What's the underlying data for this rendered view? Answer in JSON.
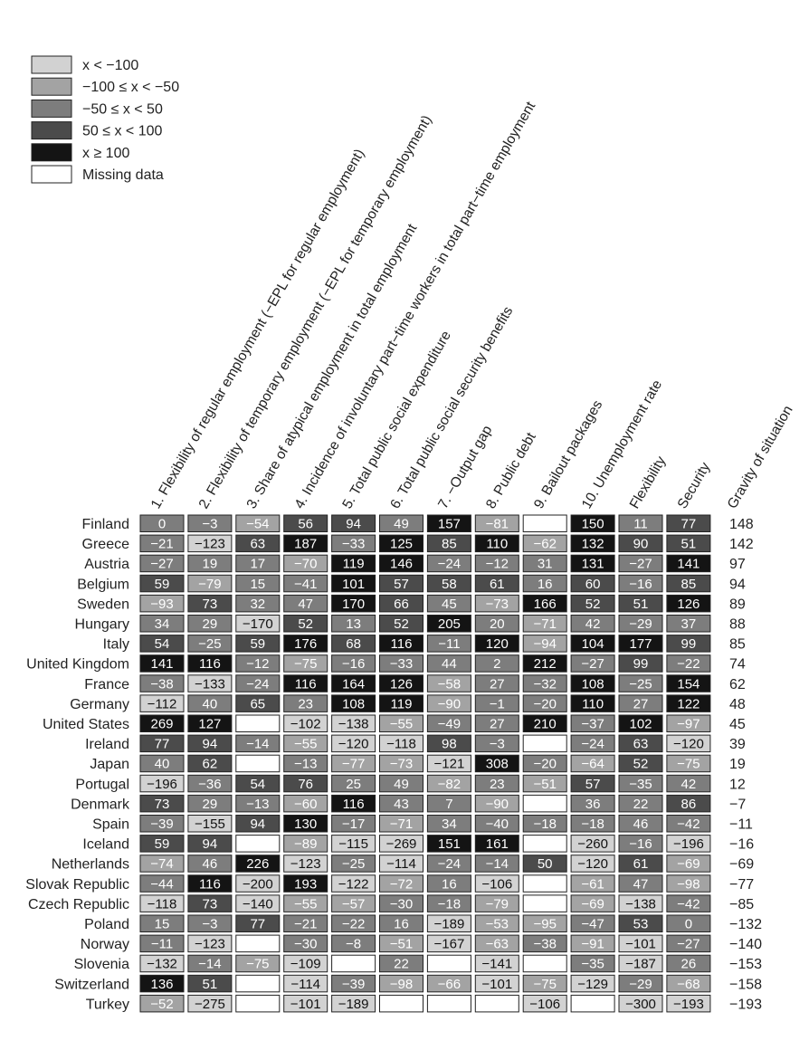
{
  "chart_data": {
    "type": "heatmap",
    "columns": [
      "1. Flexibility of regular employment (−EPL for regular employment)",
      "2. Flexibility of temporary employment (−EPL for temporary employment)",
      "3. Share of atypical employment in total employment",
      "4. Incidence of involuntary part−time workers in total part−time employment",
      "5. Total public social expenditure",
      "6. Total public social security benefits",
      "7. −Output gap",
      "8. Public debt",
      "9. Bailout packages",
      "10. Unemployment rate",
      "Flexibility",
      "Security"
    ],
    "extra_column": "Gravity of situation",
    "legend": [
      {
        "label": "x < −100",
        "color": "#d2d2d2"
      },
      {
        "label": "−100 ≤ x < −50",
        "color": "#a3a3a3"
      },
      {
        "label": "−50 ≤ x < 50",
        "color": "#7d7d7d"
      },
      {
        "label": "50 ≤ x < 100",
        "color": "#4b4b4b"
      },
      {
        "label": "x ≥ 100",
        "color": "#141414"
      },
      {
        "label": "Missing data",
        "color": "#ffffff"
      }
    ],
    "rows": [
      {
        "country": "Finland",
        "values": [
          0,
          -3,
          -54,
          56,
          94,
          49,
          157,
          -81,
          null,
          150,
          11,
          77
        ],
        "gravity": 148
      },
      {
        "country": "Greece",
        "values": [
          -21,
          -123,
          63,
          187,
          -33,
          125,
          85,
          110,
          -62,
          132,
          90,
          51
        ],
        "gravity": 142
      },
      {
        "country": "Austria",
        "values": [
          -27,
          19,
          17,
          -70,
          119,
          146,
          -24,
          -12,
          31,
          131,
          -27,
          141
        ],
        "gravity": 97
      },
      {
        "country": "Belgium",
        "values": [
          59,
          -79,
          15,
          -41,
          101,
          57,
          58,
          61,
          16,
          60,
          -16,
          85
        ],
        "gravity": 94
      },
      {
        "country": "Sweden",
        "values": [
          -93,
          73,
          32,
          47,
          170,
          66,
          45,
          -73,
          166,
          52,
          51,
          126
        ],
        "gravity": 89
      },
      {
        "country": "Hungary",
        "values": [
          34,
          29,
          -170,
          52,
          13,
          52,
          205,
          20,
          -71,
          42,
          -29,
          37
        ],
        "gravity": 88
      },
      {
        "country": "Italy",
        "values": [
          54,
          -25,
          59,
          176,
          68,
          116,
          -11,
          120,
          -94,
          104,
          177,
          99
        ],
        "gravity": 85
      },
      {
        "country": "United Kingdom",
        "values": [
          141,
          116,
          -12,
          -75,
          -16,
          -33,
          44,
          2,
          212,
          -27,
          99,
          -22
        ],
        "gravity": 74
      },
      {
        "country": "France",
        "values": [
          -38,
          -133,
          -24,
          116,
          164,
          126,
          -58,
          27,
          -32,
          108,
          -25,
          154
        ],
        "gravity": 62
      },
      {
        "country": "Germany",
        "values": [
          -112,
          40,
          65,
          23,
          108,
          119,
          -90,
          -1,
          -20,
          110,
          27,
          122
        ],
        "gravity": 48
      },
      {
        "country": "United States",
        "values": [
          269,
          127,
          null,
          -102,
          -138,
          -55,
          -49,
          27,
          210,
          -37,
          102,
          -97
        ],
        "gravity": 45
      },
      {
        "country": "Ireland",
        "values": [
          77,
          94,
          -14,
          -55,
          -120,
          -118,
          98,
          -3,
          null,
          -24,
          63,
          -120
        ],
        "gravity": 39
      },
      {
        "country": "Japan",
        "values": [
          40,
          62,
          null,
          -13,
          -77,
          -73,
          -121,
          308,
          -20,
          -64,
          52,
          -75
        ],
        "gravity": 19
      },
      {
        "country": "Portugal",
        "values": [
          -196,
          -36,
          54,
          76,
          25,
          49,
          -82,
          23,
          -51,
          57,
          -35,
          42
        ],
        "gravity": 12
      },
      {
        "country": "Denmark",
        "values": [
          73,
          29,
          -13,
          -60,
          116,
          43,
          7,
          -90,
          null,
          36,
          22,
          86
        ],
        "gravity": -7
      },
      {
        "country": "Spain",
        "values": [
          -39,
          -155,
          94,
          130,
          -17,
          -71,
          34,
          -40,
          -18,
          -18,
          46,
          -42
        ],
        "gravity": -11
      },
      {
        "country": "Iceland",
        "values": [
          59,
          94,
          null,
          -89,
          -115,
          -269,
          151,
          161,
          null,
          -260,
          -16,
          -196
        ],
        "gravity": -16
      },
      {
        "country": "Netherlands",
        "values": [
          -74,
          46,
          226,
          -123,
          -25,
          -114,
          -24,
          -14,
          50,
          -120,
          61,
          -69
        ],
        "gravity": -69
      },
      {
        "country": "Slovak Republic",
        "values": [
          -44,
          116,
          -200,
          193,
          -122,
          -72,
          16,
          -106,
          null,
          -61,
          47,
          -98
        ],
        "gravity": -77
      },
      {
        "country": "Czech Republic",
        "values": [
          -118,
          73,
          -140,
          -55,
          -57,
          -30,
          -18,
          -79,
          null,
          -69,
          -138,
          -42
        ],
        "gravity": -85
      },
      {
        "country": "Poland",
        "values": [
          15,
          -3,
          77,
          -21,
          -22,
          16,
          -189,
          -53,
          -95,
          -47,
          53,
          0
        ],
        "gravity": -132
      },
      {
        "country": "Norway",
        "values": [
          -11,
          -123,
          null,
          -30,
          -8,
          -51,
          -167,
          -63,
          -38,
          -91,
          -101,
          -27
        ],
        "gravity": -140
      },
      {
        "country": "Slovenia",
        "values": [
          -132,
          -14,
          -75,
          -109,
          null,
          22,
          null,
          -141,
          null,
          -35,
          -187,
          26
        ],
        "gravity": -153
      },
      {
        "country": "Switzerland",
        "values": [
          136,
          51,
          null,
          -114,
          -39,
          -98,
          -66,
          -101,
          -75,
          -129,
          -29,
          -68
        ],
        "gravity": -158
      },
      {
        "country": "Turkey",
        "values": [
          -52,
          -275,
          null,
          -101,
          -189,
          null,
          null,
          null,
          -106,
          null,
          -300,
          -193
        ],
        "gravity": -193
      }
    ]
  }
}
